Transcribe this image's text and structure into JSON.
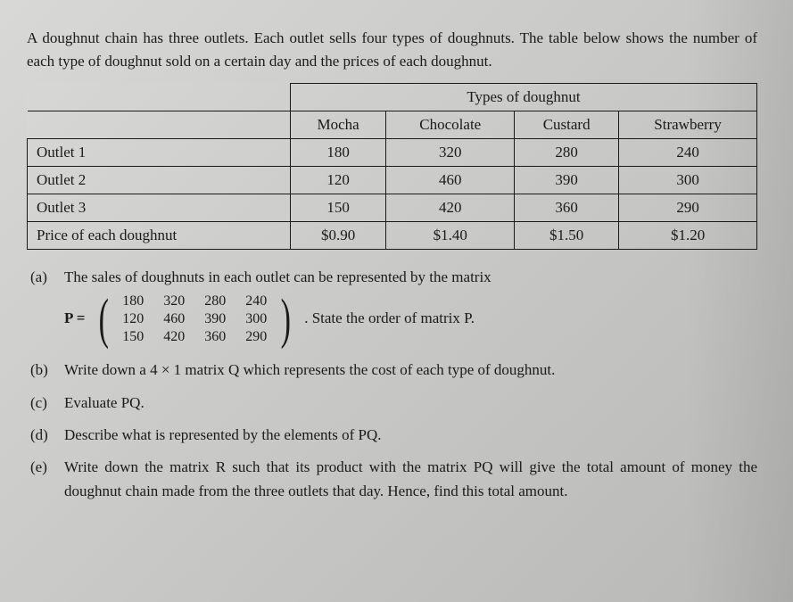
{
  "intro": "A doughnut chain has three outlets. Each outlet sells four types of doughnuts. The table below shows the number of each type of doughnut sold on a certain day and the prices of each doughnut.",
  "table": {
    "group_header": "Types of doughnut",
    "columns": [
      "Mocha",
      "Chocolate",
      "Custard",
      "Strawberry"
    ],
    "rows": [
      {
        "label": "Outlet 1",
        "cells": [
          "180",
          "320",
          "280",
          "240"
        ]
      },
      {
        "label": "Outlet 2",
        "cells": [
          "120",
          "460",
          "390",
          "300"
        ]
      },
      {
        "label": "Outlet 3",
        "cells": [
          "150",
          "420",
          "360",
          "290"
        ]
      },
      {
        "label": "Price of each doughnut",
        "cells": [
          "$0.90",
          "$1.40",
          "$1.50",
          "$1.20"
        ]
      }
    ]
  },
  "questions": {
    "a": {
      "label": "(a)",
      "lead": "The sales of doughnuts in each outlet can be represented by the matrix",
      "matrix_prefix": "P =",
      "matrix": [
        [
          "180",
          "320",
          "280",
          "240"
        ],
        [
          "120",
          "460",
          "390",
          "300"
        ],
        [
          "150",
          "420",
          "360",
          "290"
        ]
      ],
      "tail": ". State the order of matrix P."
    },
    "b": {
      "label": "(b)",
      "text": "Write down a 4 × 1 matrix Q which represents the cost of each type of doughnut."
    },
    "c": {
      "label": "(c)",
      "text": "Evaluate PQ."
    },
    "d": {
      "label": "(d)",
      "text": "Describe what is represented by the elements of PQ."
    },
    "e": {
      "label": "(e)",
      "text": "Write down the matrix R such that its product with the matrix PQ will give the total amount of money the doughnut chain made from the three outlets that day. Hence, find this total amount."
    }
  }
}
